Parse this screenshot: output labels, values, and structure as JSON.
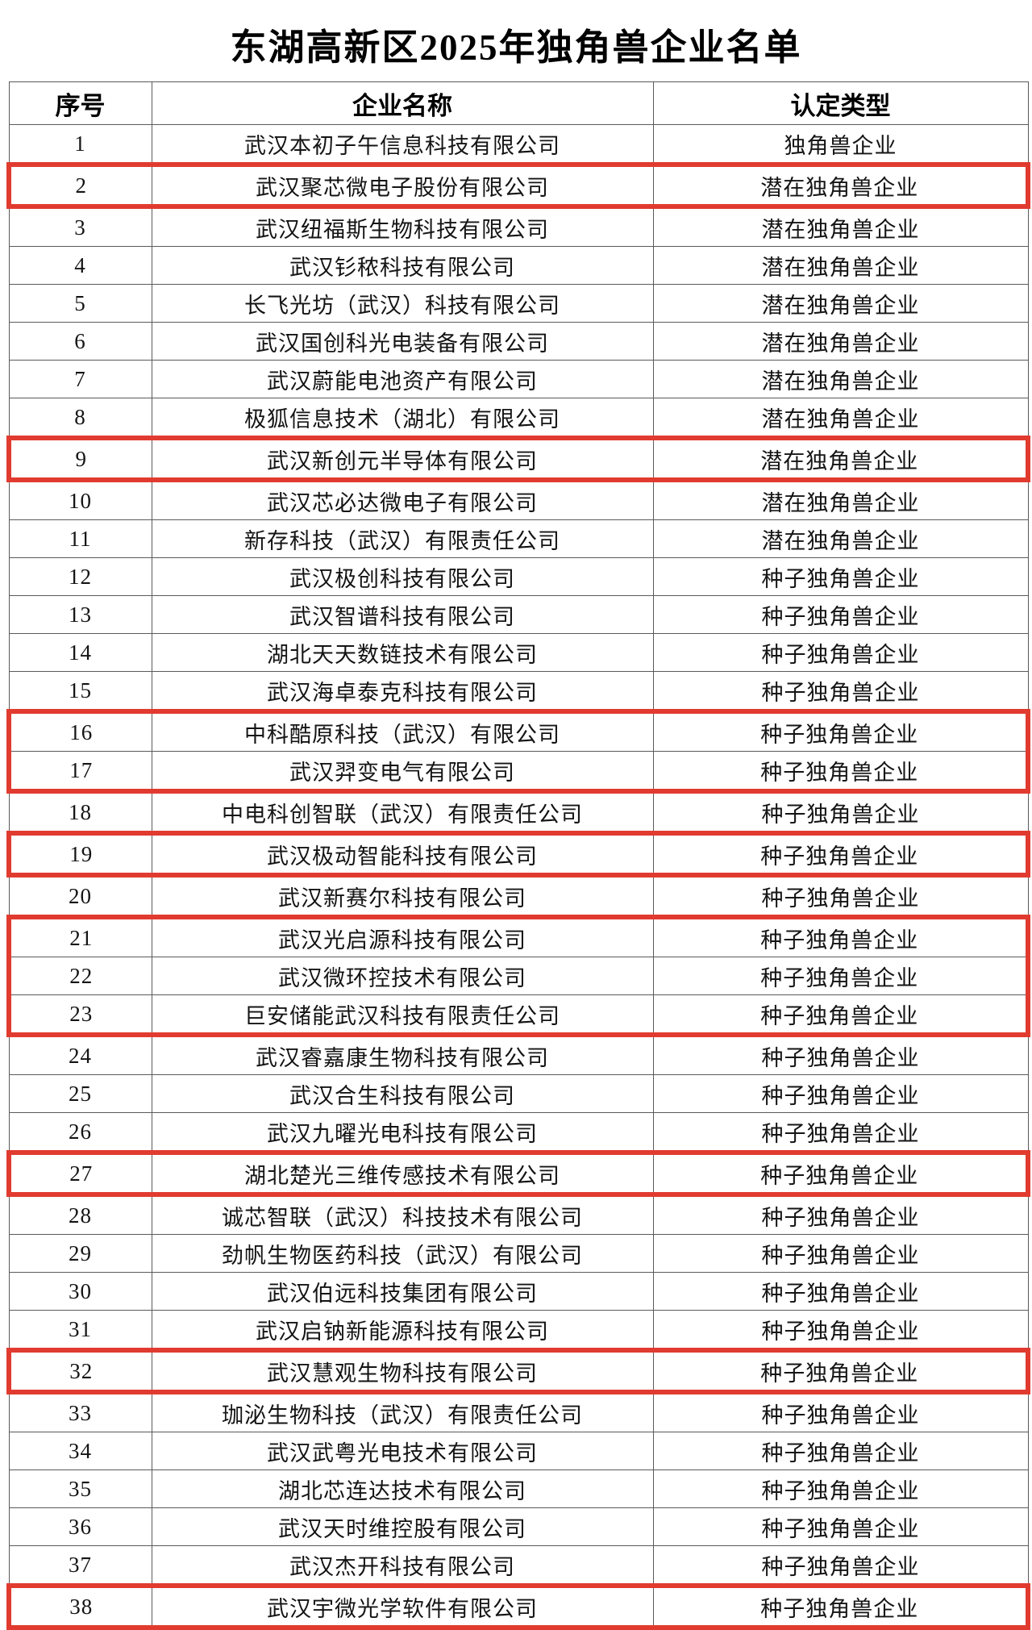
{
  "title": "东湖高新区2025年独角兽企业名单",
  "table": {
    "headers": [
      "序号",
      "企业名称",
      "认定类型"
    ],
    "highlight_color": "#e13b30",
    "highlight_groups": [
      [
        2
      ],
      [
        9
      ],
      [
        16,
        17
      ],
      [
        19
      ],
      [
        21,
        22,
        23
      ],
      [
        27
      ],
      [
        32
      ],
      [
        38
      ]
    ],
    "rows": [
      {
        "no": "1",
        "name": "武汉本初子午信息科技有限公司",
        "type": "独角兽企业"
      },
      {
        "no": "2",
        "name": "武汉聚芯微电子股份有限公司",
        "type": "潜在独角兽企业"
      },
      {
        "no": "3",
        "name": "武汉纽福斯生物科技有限公司",
        "type": "潜在独角兽企业"
      },
      {
        "no": "4",
        "name": "武汉钐秾科技有限公司",
        "type": "潜在独角兽企业"
      },
      {
        "no": "5",
        "name": "长飞光坊（武汉）科技有限公司",
        "type": "潜在独角兽企业"
      },
      {
        "no": "6",
        "name": "武汉国创科光电装备有限公司",
        "type": "潜在独角兽企业"
      },
      {
        "no": "7",
        "name": "武汉蔚能电池资产有限公司",
        "type": "潜在独角兽企业"
      },
      {
        "no": "8",
        "name": "极狐信息技术（湖北）有限公司",
        "type": "潜在独角兽企业"
      },
      {
        "no": "9",
        "name": "武汉新创元半导体有限公司",
        "type": "潜在独角兽企业"
      },
      {
        "no": "10",
        "name": "武汉芯必达微电子有限公司",
        "type": "潜在独角兽企业"
      },
      {
        "no": "11",
        "name": "新存科技（武汉）有限责任公司",
        "type": "潜在独角兽企业"
      },
      {
        "no": "12",
        "name": "武汉极创科技有限公司",
        "type": "种子独角兽企业"
      },
      {
        "no": "13",
        "name": "武汉智谱科技有限公司",
        "type": "种子独角兽企业"
      },
      {
        "no": "14",
        "name": "湖北天天数链技术有限公司",
        "type": "种子独角兽企业"
      },
      {
        "no": "15",
        "name": "武汉海卓泰克科技有限公司",
        "type": "种子独角兽企业"
      },
      {
        "no": "16",
        "name": "中科酷原科技（武汉）有限公司",
        "type": "种子独角兽企业"
      },
      {
        "no": "17",
        "name": "武汉羿变电气有限公司",
        "type": "种子独角兽企业"
      },
      {
        "no": "18",
        "name": "中电科创智联（武汉）有限责任公司",
        "type": "种子独角兽企业"
      },
      {
        "no": "19",
        "name": "武汉极动智能科技有限公司",
        "type": "种子独角兽企业"
      },
      {
        "no": "20",
        "name": "武汉新赛尔科技有限公司",
        "type": "种子独角兽企业"
      },
      {
        "no": "21",
        "name": "武汉光启源科技有限公司",
        "type": "种子独角兽企业"
      },
      {
        "no": "22",
        "name": "武汉微环控技术有限公司",
        "type": "种子独角兽企业"
      },
      {
        "no": "23",
        "name": "巨安储能武汉科技有限责任公司",
        "type": "种子独角兽企业"
      },
      {
        "no": "24",
        "name": "武汉睿嘉康生物科技有限公司",
        "type": "种子独角兽企业"
      },
      {
        "no": "25",
        "name": "武汉合生科技有限公司",
        "type": "种子独角兽企业"
      },
      {
        "no": "26",
        "name": "武汉九曜光电科技有限公司",
        "type": "种子独角兽企业"
      },
      {
        "no": "27",
        "name": "湖北楚光三维传感技术有限公司",
        "type": "种子独角兽企业"
      },
      {
        "no": "28",
        "name": "诚芯智联（武汉）科技技术有限公司",
        "type": "种子独角兽企业"
      },
      {
        "no": "29",
        "name": "劲帆生物医药科技（武汉）有限公司",
        "type": "种子独角兽企业"
      },
      {
        "no": "30",
        "name": "武汉伯远科技集团有限公司",
        "type": "种子独角兽企业"
      },
      {
        "no": "31",
        "name": "武汉启钠新能源科技有限公司",
        "type": "种子独角兽企业"
      },
      {
        "no": "32",
        "name": "武汉慧观生物科技有限公司",
        "type": "种子独角兽企业"
      },
      {
        "no": "33",
        "name": "珈泌生物科技（武汉）有限责任公司",
        "type": "种子独角兽企业"
      },
      {
        "no": "34",
        "name": "武汉武粤光电技术有限公司",
        "type": "种子独角兽企业"
      },
      {
        "no": "35",
        "name": "湖北芯连达技术有限公司",
        "type": "种子独角兽企业"
      },
      {
        "no": "36",
        "name": "武汉天时维控股有限公司",
        "type": "种子独角兽企业"
      },
      {
        "no": "37",
        "name": "武汉杰开科技有限公司",
        "type": "种子独角兽企业"
      },
      {
        "no": "38",
        "name": "武汉宇微光学软件有限公司",
        "type": "种子独角兽企业"
      }
    ]
  }
}
